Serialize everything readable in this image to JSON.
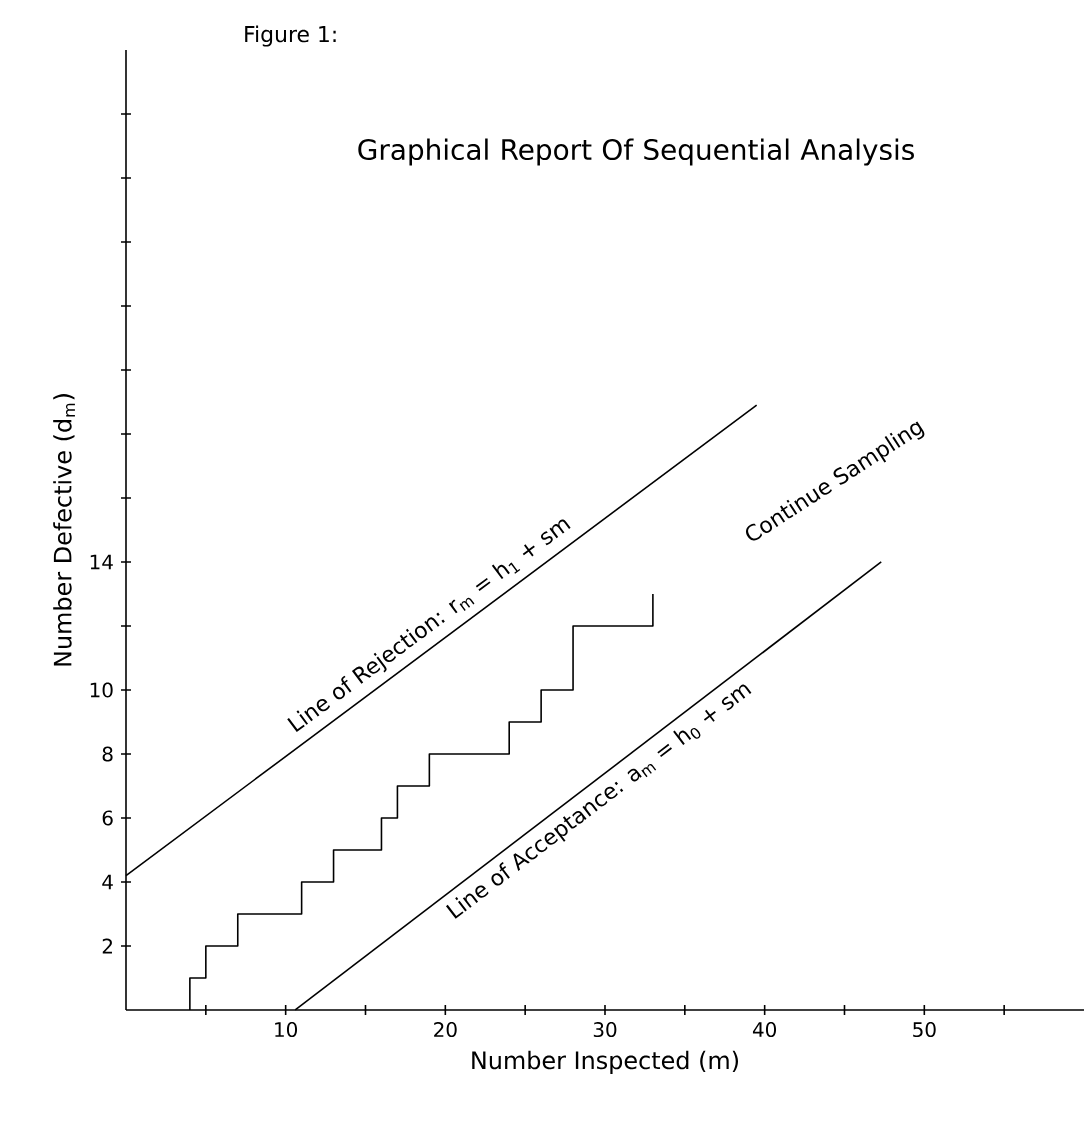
{
  "chart_data": {
    "type": "line",
    "title": "Figure 1:",
    "subtitle": "Graphical Report Of Sequential Analysis",
    "xlabel": "Number Inspected (m)",
    "ylabel": "Number Defective (d$_{m}$)",
    "xlim": [
      0,
      60
    ],
    "ylim": [
      0,
      30
    ],
    "xticks": [
      {
        "value": 5,
        "label": null
      },
      10,
      {
        "value": 15,
        "label": null
      },
      20,
      {
        "value": 25,
        "label": null
      },
      30,
      {
        "value": 35,
        "label": null
      },
      40,
      {
        "value": 45,
        "label": null
      },
      50,
      {
        "value": 55,
        "label": null
      }
    ],
    "yticks": [
      2,
      4,
      6,
      8,
      10,
      {
        "value": 12,
        "label": null
      },
      14,
      {
        "value": 16,
        "label": null
      },
      {
        "value": 18,
        "label": null
      },
      {
        "value": 20,
        "label": null
      },
      {
        "value": 22,
        "label": null
      },
      {
        "value": 24,
        "label": null
      },
      {
        "value": 26,
        "label": null
      },
      {
        "value": 28,
        "label": null
      }
    ],
    "series": [
      {
        "name": "Line of Rejection: r$_{m}$ = h$_{1}$ + sm",
        "color": "#000000",
        "x": [
          0,
          39.5
        ],
        "values": [
          4.2,
          18.9
        ]
      },
      {
        "name": "Line of Acceptance: a$_{m}$ = h$_{0}$ + sm",
        "color": "#000000",
        "x": [
          10.6,
          47.3
        ],
        "values": [
          0,
          14
        ]
      },
      {
        "type": "step",
        "color": "#000000",
        "x": [
          4,
          4,
          5,
          7,
          11,
          13,
          16,
          17,
          19,
          24,
          26,
          28,
          33
        ],
        "values": [
          0,
          1,
          2,
          3,
          4,
          5,
          6,
          7,
          8,
          9,
          10,
          12,
          13
        ]
      }
    ],
    "annotations": [
      "Continue Sampling"
    ]
  }
}
